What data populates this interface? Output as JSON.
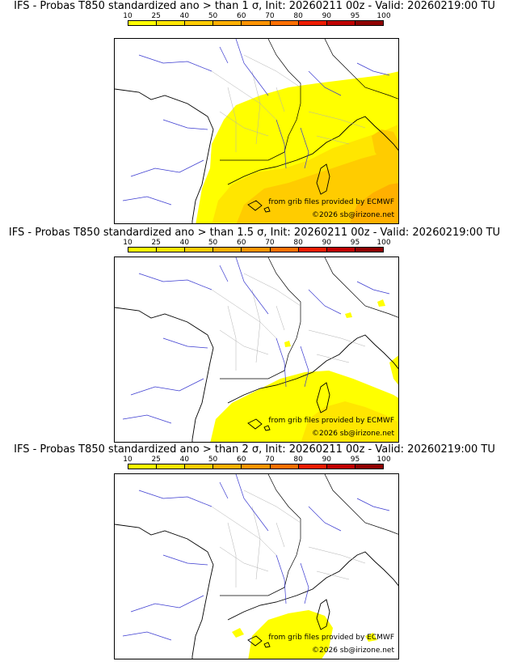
{
  "colorbar": {
    "ticks": [
      "10",
      "25",
      "40",
      "50",
      "60",
      "70",
      "80",
      "90",
      "95",
      "100"
    ],
    "colors": [
      "#ffff00",
      "#ffe600",
      "#ffcc00",
      "#ffb000",
      "#ff9400",
      "#ff7000",
      "#ee1c00",
      "#c00000",
      "#900000",
      "#600000"
    ]
  },
  "panels": [
    {
      "title": "IFS - Probas T850  standardized ano > than 1 σ, Init: 20260211 00z - Valid: 20260219:00 TU",
      "credit": "from grib files provided by ECMWF",
      "copyright": "©2026 sb@irizone.net"
    },
    {
      "title": "IFS - Probas T850  standardized ano > than 1.5 σ, Init: 20260211 00z - Valid: 20260219:00 TU",
      "credit": "from grib files provided by ECMWF",
      "copyright": "©2026 sb@irizone.net"
    },
    {
      "title": "IFS - Probas T850  standardized ano > than 2 σ, Init: 20260211 00z - Valid: 20260219:00 TU",
      "credit": "from grib files provided by ECMWF",
      "copyright": "©2026 sb@irizone.net"
    }
  ]
}
